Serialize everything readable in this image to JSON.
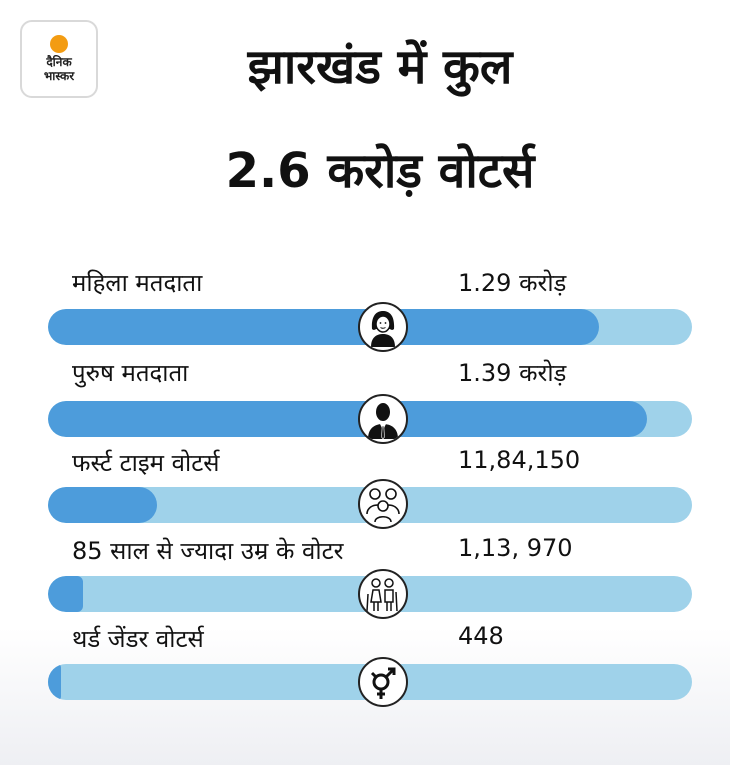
{
  "logo": {
    "line1": "दैनिक",
    "line2": "भास्कर"
  },
  "chart_data": {
    "type": "bar",
    "title": "झारखंड में कुल 2.6 करोड़ वोटर्स",
    "title_lines": [
      "झारखंड में कुल",
      "2.6 करोड़ वोटर्स"
    ],
    "rows": [
      {
        "label": "महिला मतदाता",
        "value_text": "1.29 करोड़",
        "fill_fraction": 0.855,
        "icon": "woman-icon"
      },
      {
        "label": "पुरुष मतदाता",
        "value_text": "1.39 करोड़",
        "fill_fraction": 0.93,
        "icon": "man-icon"
      },
      {
        "label": "फर्स्ट टाइम वोटर्स",
        "value_text": "11,84,150",
        "fill_fraction": 0.17,
        "icon": "family-icon"
      },
      {
        "label": "85 साल से ज्यादा उम्र के वोटर",
        "value_text": "1,13, 970",
        "fill_fraction": 0.055,
        "icon": "elderly-couple-icon"
      },
      {
        "label": "थर्ड जेंडर वोटर्स",
        "value_text": "448",
        "fill_fraction": 0.02,
        "icon": "third-gender-icon"
      }
    ]
  }
}
